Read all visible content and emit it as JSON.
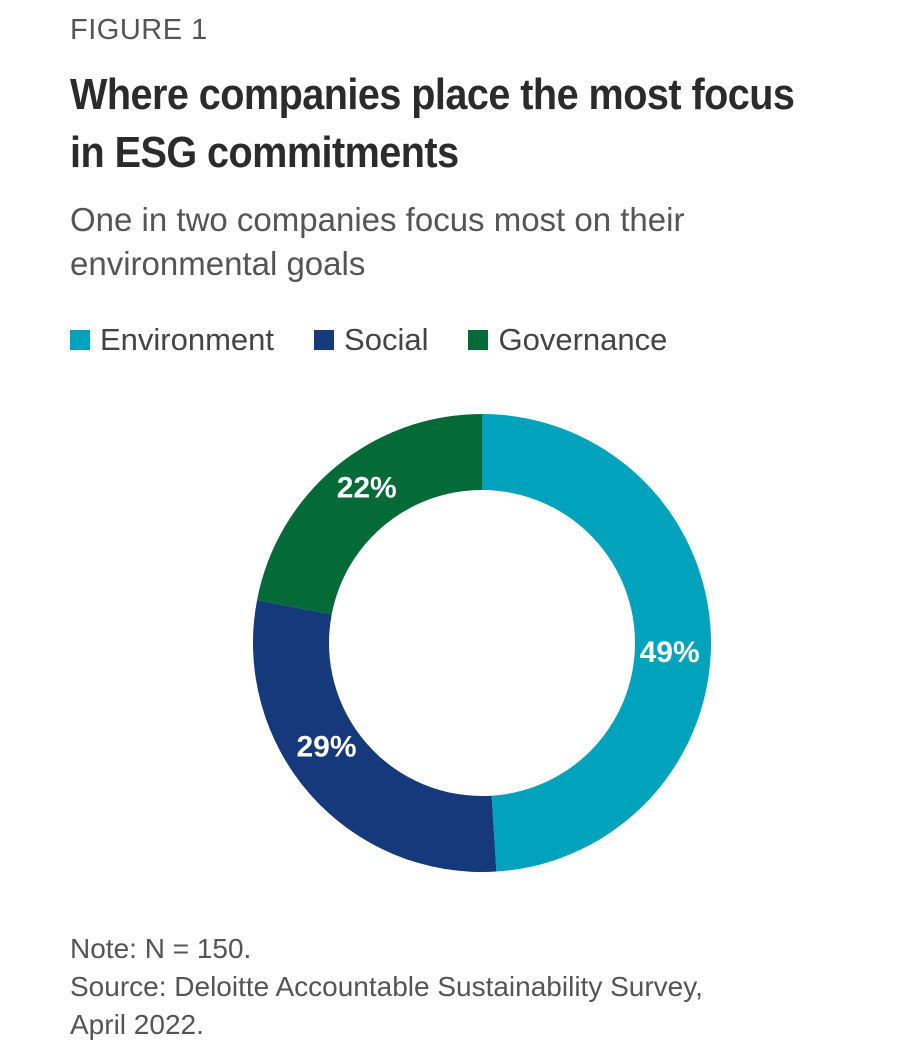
{
  "figure_label": "FIGURE 1",
  "title": "Where companies place the most focus in ESG commitments",
  "subtitle": "One in two companies focus most on their environmental goals",
  "legend": [
    {
      "label": "Environment",
      "color": "#00a3bb"
    },
    {
      "label": "Social",
      "color": "#15397a"
    },
    {
      "label": "Governance",
      "color": "#046a38"
    }
  ],
  "chart_data": {
    "type": "pie",
    "variant": "donut",
    "categories": [
      "Environment",
      "Social",
      "Governance"
    ],
    "values": [
      49,
      29,
      22
    ],
    "labels": [
      "49%",
      "29%",
      "22%"
    ],
    "colors": [
      "#00a3bb",
      "#15397a",
      "#046a38"
    ],
    "title": "Where companies place the most focus in ESG commitments",
    "legend_position": "top-left"
  },
  "note": "Note: N = 150.",
  "source_line1": "Source: Deloitte Accountable Sustainability Survey,",
  "source_line2": "April 2022."
}
